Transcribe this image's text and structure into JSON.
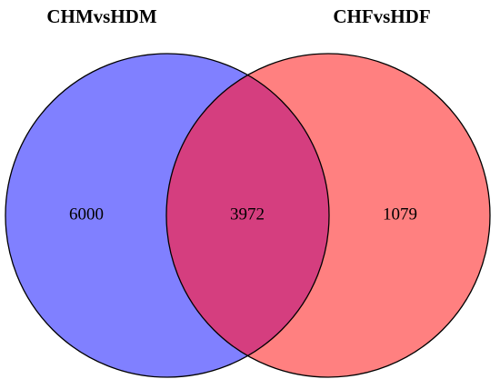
{
  "chart_data": {
    "type": "venn",
    "sets": [
      {
        "name": "CHMvsHDM",
        "color": "#8080ff"
      },
      {
        "name": "CHFvsHDF",
        "color": "#ff8080"
      }
    ],
    "overlap_color": "#d53e7f",
    "values": [
      6000,
      3972,
      1079
    ]
  }
}
